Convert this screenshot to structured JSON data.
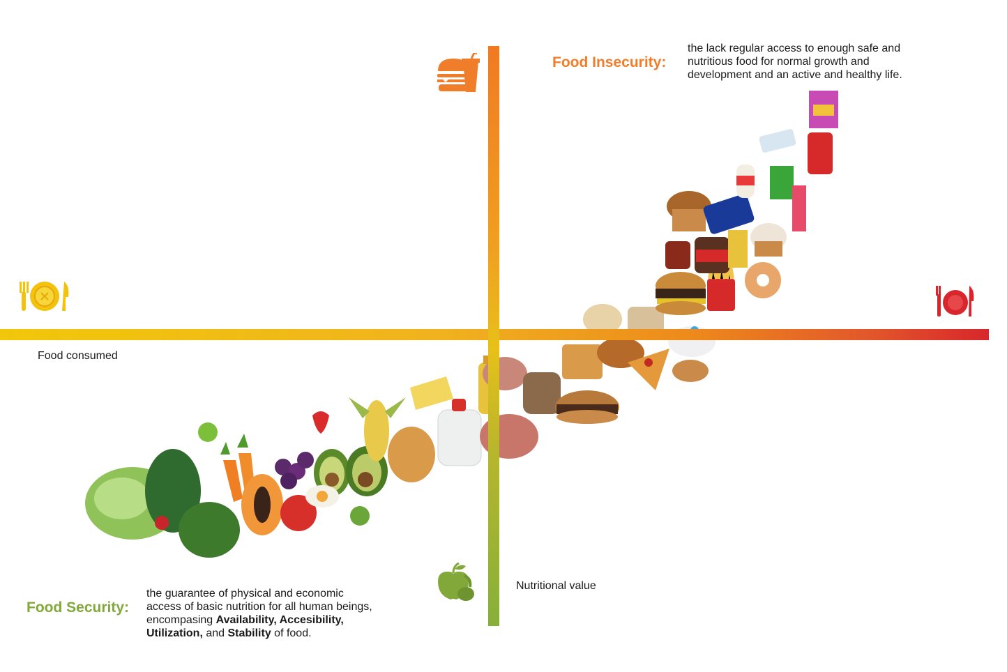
{
  "axes": {
    "x_label": "Food consumed",
    "y_label": "Nutritional value"
  },
  "food_insecurity": {
    "term": "Food Insecurity:",
    "definition_lines": [
      "the lack regular access to enough safe and",
      "nutritious food for normal growth and",
      "development and an active and healthy life."
    ]
  },
  "food_security": {
    "term": "Food Security:",
    "line1": "the guarantee of physical and economic",
    "line2": "access of basic nutrition for all human beings,",
    "line3_prefix": "encompasing ",
    "line3_bold": "Availability, Accesibility,",
    "line4_bold1": "Utilization,",
    "line4_mid": " and ",
    "line4_bold2": "Stability",
    "line4_suffix": " of food."
  },
  "icons": {
    "top": "burger-drink-icon",
    "left": "plate-cutlery-icon",
    "right": "plate-cutlery-red-icon",
    "bottom": "fruit-vegetable-icon"
  },
  "colors": {
    "insecurity": "#f07d2a",
    "security": "#82a83a",
    "axis_yellow": "#f1c70a",
    "axis_red": "#d8262c",
    "axis_green": "#86b03a"
  }
}
